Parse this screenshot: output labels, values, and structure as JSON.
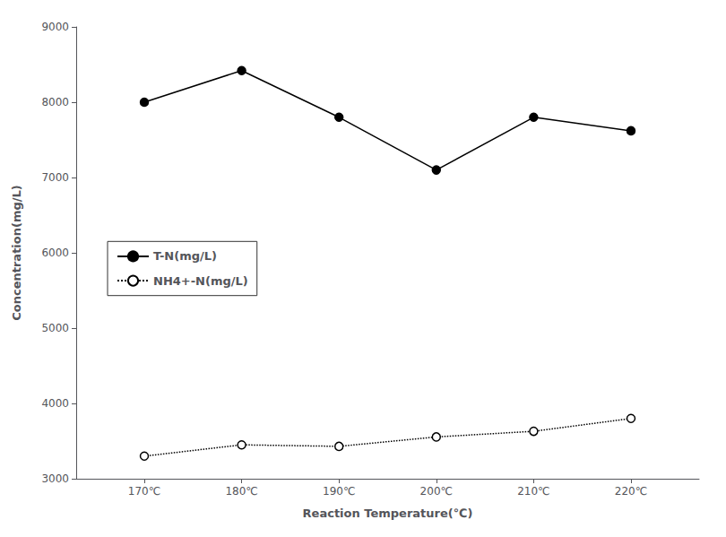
{
  "chart_data": {
    "type": "line",
    "x": [
      170,
      180,
      190,
      200,
      210,
      220
    ],
    "xlim": [
      163,
      227
    ],
    "xticks": [
      {
        "value": 170,
        "label": "170℃"
      },
      {
        "value": 180,
        "label": "180℃"
      },
      {
        "value": 190,
        "label": "190℃"
      },
      {
        "value": 200,
        "label": "200℃"
      },
      {
        "value": 210,
        "label": "210℃"
      },
      {
        "value": 220,
        "label": "220℃"
      }
    ],
    "ylim": [
      3000,
      9000
    ],
    "yticks": [
      3000,
      4000,
      5000,
      6000,
      7000,
      8000,
      9000
    ],
    "x_label": "Reaction Temperature(℃)",
    "y_label": "Concentration(mg/L)",
    "grid": false,
    "legend": "center left",
    "series": [
      {
        "name": "T-N(mg/L)",
        "color": "black",
        "marker": "filled circle",
        "line_style": "solid",
        "values": [
          8000,
          8420,
          7800,
          7100,
          7800,
          7620
        ]
      },
      {
        "name": "NH4+-N(mg/L)",
        "color": "black",
        "marker": "open circle",
        "line_style": "dotted",
        "values": [
          3300,
          3450,
          3430,
          3555,
          3630,
          3800
        ]
      }
    ]
  }
}
